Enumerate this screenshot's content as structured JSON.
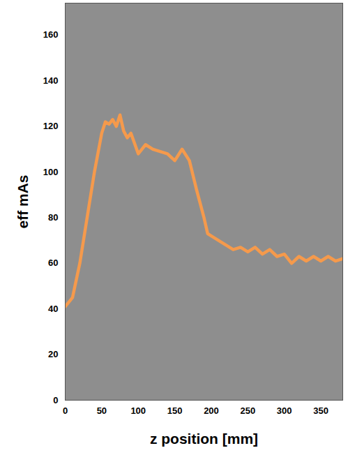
{
  "chart_data": {
    "type": "line",
    "x_label": "z position [mm]",
    "y_label": "eff mAs",
    "x": [
      0,
      10,
      20,
      30,
      40,
      50,
      55,
      60,
      65,
      70,
      75,
      80,
      85,
      90,
      100,
      105,
      110,
      120,
      130,
      140,
      150,
      160,
      170,
      180,
      190,
      195,
      200,
      210,
      220,
      230,
      240,
      250,
      260,
      270,
      280,
      290,
      300,
      310,
      320,
      330,
      340,
      350,
      360,
      370,
      380
    ],
    "series": [
      {
        "name": "eff mAs",
        "color": "#f59a4c",
        "values": [
          41,
          45,
          60,
          80,
          100,
          117,
          122,
          121,
          123,
          120,
          125,
          118,
          115,
          117,
          108,
          110,
          112,
          110,
          109,
          108,
          105,
          110,
          105,
          92,
          80,
          73,
          72,
          70,
          68,
          66,
          67,
          65,
          67,
          64,
          66,
          63,
          64,
          60,
          63,
          61,
          63,
          61,
          63,
          61,
          62
        ]
      }
    ],
    "xlim": [
      0,
      380
    ],
    "xticks": [
      0,
      50,
      100,
      150,
      200,
      250,
      300,
      350
    ],
    "ylim": [
      0,
      174
    ],
    "yticks": [
      0,
      20,
      40,
      60,
      80,
      100,
      120,
      140,
      160
    ],
    "grid": false
  }
}
